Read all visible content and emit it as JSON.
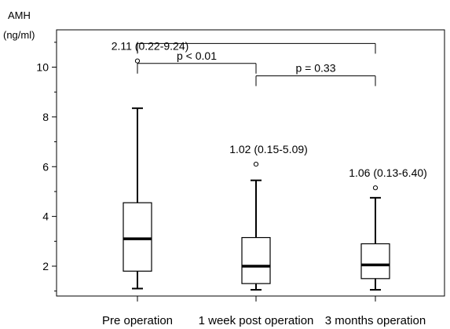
{
  "chart_data": {
    "type": "boxplot",
    "ylabel_line1": "AMH",
    "ylabel_line2": "(ng/ml)",
    "ylim": [
      0.8,
      11.5
    ],
    "yticks": [
      2,
      4,
      6,
      8,
      10
    ],
    "minor_yticks": [
      1,
      3,
      5,
      7,
      9,
      11
    ],
    "grid": false,
    "categories": [
      "Pre operation",
      "1 week post operation",
      "3 months operation"
    ],
    "boxes": [
      {
        "whisker_low": 1.1,
        "q1": 1.8,
        "median": 3.1,
        "q3": 4.55,
        "whisker_high": 8.35,
        "outliers": [
          10.25
        ],
        "label": "2.11 (0.22-9.24)"
      },
      {
        "whisker_low": 1.05,
        "q1": 1.3,
        "median": 2.0,
        "q3": 3.15,
        "whisker_high": 5.45,
        "outliers": [
          6.1
        ],
        "label": "1.02 (0.15-5.09)"
      },
      {
        "whisker_low": 1.05,
        "q1": 1.5,
        "median": 2.05,
        "q3": 2.9,
        "whisker_high": 4.75,
        "outliers": [
          5.15
        ],
        "label": "1.06 (0.13-6.40)"
      }
    ],
    "brackets": [
      {
        "from": 0,
        "to": 2,
        "y": 10.95,
        "label": ""
      },
      {
        "from": 0,
        "to": 1,
        "y": 10.15,
        "label": "p < 0.01"
      },
      {
        "from": 1,
        "to": 2,
        "y": 9.65,
        "label": "p = 0.33"
      }
    ]
  }
}
